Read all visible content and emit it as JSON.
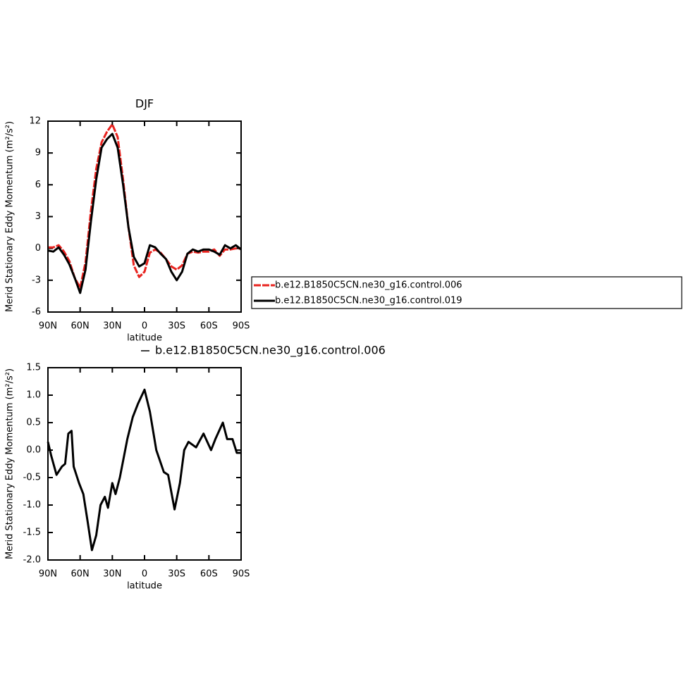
{
  "chart_data": [
    {
      "type": "line",
      "title": "DJF",
      "xlabel": "latitude",
      "ylabel": "Merid Stationary Eddy Momentum (m²/s²)",
      "x": [
        90,
        85,
        80,
        75,
        70,
        65,
        60,
        55,
        50,
        45,
        40,
        35,
        30,
        25,
        20,
        15,
        10,
        5,
        0,
        -5,
        -10,
        -15,
        -20,
        -25,
        -30,
        -35,
        -40,
        -45,
        -50,
        -55,
        -60,
        -65,
        -70,
        -75,
        -80,
        -85,
        -90
      ],
      "series": [
        {
          "name": "b.e12.B1850C5CN.ne30_g16.control.006",
          "color": "#e8231f",
          "dash": true,
          "values": [
            0.1,
            0.1,
            0.3,
            -0.3,
            -1.2,
            -2.8,
            -3.7,
            -1.3,
            3.5,
            7.5,
            10.0,
            11.0,
            11.7,
            10.5,
            6.5,
            2.0,
            -1.6,
            -2.7,
            -2.2,
            -0.4,
            -0.1,
            -0.4,
            -1.0,
            -1.7,
            -2.0,
            -1.6,
            -0.5,
            -0.3,
            -0.4,
            -0.3,
            -0.3,
            -0.1,
            -0.7,
            -0.1,
            -0.1,
            0.0,
            0.0
          ]
        },
        {
          "name": "b.e12.B1850C5CN.ne30_g16.control.019",
          "color": "#000000",
          "dash": false,
          "values": [
            -0.2,
            -0.3,
            0.1,
            -0.6,
            -1.5,
            -2.8,
            -4.2,
            -2.0,
            2.5,
            6.5,
            9.5,
            10.3,
            10.8,
            9.5,
            6.0,
            2.0,
            -0.8,
            -1.7,
            -1.4,
            0.3,
            0.1,
            -0.5,
            -1.0,
            -2.2,
            -3.0,
            -2.2,
            -0.5,
            -0.1,
            -0.3,
            -0.1,
            -0.1,
            -0.3,
            -0.6,
            0.3,
            0.0,
            0.3,
            -0.1
          ]
        }
      ],
      "xlim": [
        90,
        -90
      ],
      "xticks": [
        {
          "value": 90,
          "label": "90N"
        },
        {
          "value": 60,
          "label": "60N"
        },
        {
          "value": 30,
          "label": "30N"
        },
        0,
        {
          "value": -30,
          "label": "30S"
        },
        {
          "value": -60,
          "label": "60S"
        },
        {
          "value": -90,
          "label": "90S"
        }
      ],
      "ylim": [
        -6,
        12
      ],
      "yticks": [
        -6,
        -3,
        0,
        3,
        6,
        9,
        12
      ],
      "legend": "outside-right"
    },
    {
      "type": "line",
      "title": "b.e12.B1850C5CN.ne30_g16.control.006",
      "xlabel": "latitude",
      "ylabel": "Merid Stationary Eddy Momentum (m²/s²)",
      "x": [
        90,
        87,
        82,
        77,
        74,
        71,
        68,
        66,
        61,
        57,
        53,
        49,
        45,
        41,
        37,
        34,
        30,
        27,
        23,
        16,
        11,
        6,
        0,
        -5,
        -11,
        -18,
        -22,
        -28,
        -33,
        -37,
        -41,
        -48,
        -55,
        -62,
        -66,
        -73,
        -77,
        -82,
        -86,
        -90
      ],
      "series": [
        {
          "name": "b.e12.B1850C5CN.ne30_g16.control.006",
          "color": "#000000",
          "dash": false,
          "values": [
            0.15,
            -0.1,
            -0.45,
            -0.3,
            -0.25,
            0.3,
            0.35,
            -0.3,
            -0.6,
            -0.8,
            -1.3,
            -1.82,
            -1.55,
            -1.0,
            -0.85,
            -1.05,
            -0.6,
            -0.8,
            -0.5,
            0.2,
            0.6,
            0.85,
            1.1,
            0.7,
            0.0,
            -0.4,
            -0.45,
            -1.08,
            -0.6,
            0.0,
            0.15,
            0.05,
            0.3,
            0.0,
            0.2,
            0.5,
            0.2,
            0.2,
            -0.05,
            -0.05
          ]
        }
      ],
      "xlim": [
        90,
        -90
      ],
      "xticks": [
        {
          "value": 90,
          "label": "90N"
        },
        {
          "value": 60,
          "label": "60N"
        },
        {
          "value": 30,
          "label": "30N"
        },
        0,
        {
          "value": -30,
          "label": "30S"
        },
        {
          "value": -60,
          "label": "60S"
        },
        {
          "value": -90,
          "label": "90S"
        }
      ],
      "ylim": [
        -2.0,
        1.5
      ],
      "yticks": [
        {
          "value": -2,
          "label": "-2.0"
        },
        -1.5,
        {
          "value": -1,
          "label": "-1.0"
        },
        -0.5,
        {
          "value": 0,
          "label": "0.0"
        },
        0.5,
        {
          "value": 1,
          "label": "1.0"
        },
        1.5
      ]
    }
  ]
}
